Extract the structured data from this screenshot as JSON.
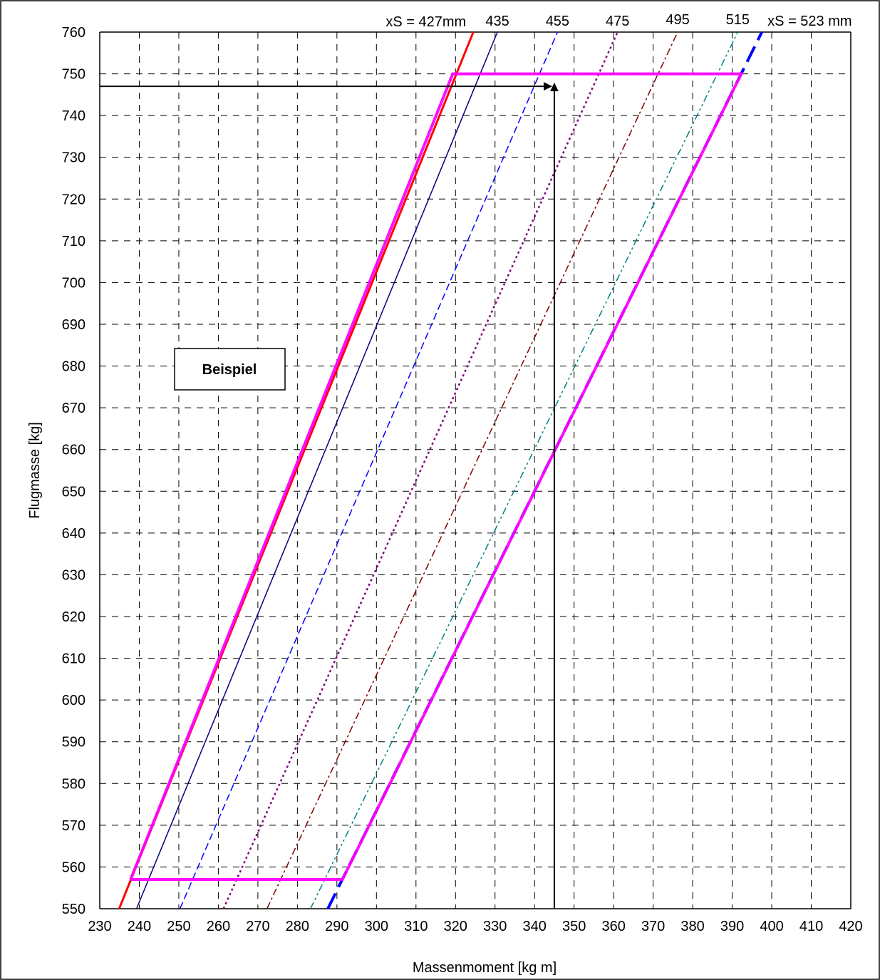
{
  "chart_data": {
    "type": "line",
    "xlabel": "Massenmoment [kg m]",
    "ylabel": "Flugmasse [kg]",
    "xlim": [
      230,
      420
    ],
    "ylim": [
      550,
      760
    ],
    "xticks": [
      230,
      240,
      250,
      260,
      270,
      280,
      290,
      300,
      310,
      320,
      330,
      340,
      350,
      360,
      370,
      380,
      390,
      400,
      410,
      420
    ],
    "yticks": [
      550,
      560,
      570,
      580,
      590,
      600,
      610,
      620,
      630,
      640,
      650,
      660,
      670,
      680,
      690,
      700,
      710,
      720,
      730,
      740,
      750,
      760
    ],
    "grid": true,
    "annotation_box": "Beispiel",
    "series": [
      {
        "label": "xS = 427mm",
        "color": "#ff0000",
        "dash": "solid",
        "width": 3,
        "x": [
          234.9,
          324.5
        ],
        "y": [
          550,
          760
        ]
      },
      {
        "label": "435",
        "color": "#000080",
        "dash": "solid",
        "width": 1.5,
        "x": [
          239.3,
          330.6
        ],
        "y": [
          550,
          760
        ]
      },
      {
        "label": "455",
        "color": "#0000ff",
        "dash": "dashed",
        "width": 1.5,
        "x": [
          250.3,
          345.8
        ],
        "y": [
          550,
          760
        ]
      },
      {
        "label": "475",
        "color": "#800080",
        "dash": "dotted",
        "width": 2.5,
        "x": [
          261.3,
          361.0
        ],
        "y": [
          550,
          760
        ]
      },
      {
        "label": "495",
        "color": "#800000",
        "dash": "dashdot",
        "width": 1.5,
        "x": [
          272.3,
          376.2
        ],
        "y": [
          550,
          760
        ]
      },
      {
        "label": "515",
        "color": "#008080",
        "dash": "dashdotdot",
        "width": 1.5,
        "x": [
          283.3,
          391.4
        ],
        "y": [
          550,
          760
        ]
      },
      {
        "label": "xS = 523 mm",
        "color": "#0000ff",
        "dash": "longdash",
        "width": 4,
        "x": [
          287.7,
          397.5
        ],
        "y": [
          550,
          760
        ]
      }
    ],
    "envelope": {
      "color": "#ff00ff",
      "x": [
        237.8,
        319.3,
        392.3,
        291.4,
        237.8
      ],
      "y": [
        557,
        750,
        750,
        557,
        557
      ]
    },
    "example": {
      "x": 345,
      "y": 747,
      "color": "#000000"
    }
  }
}
